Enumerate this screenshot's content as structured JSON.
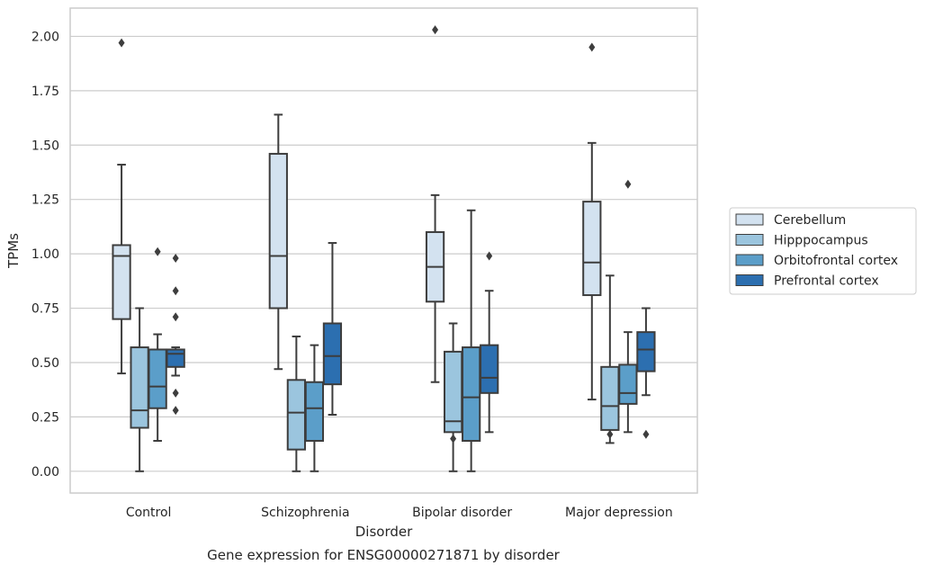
{
  "chart_data": {
    "type": "box",
    "title": "",
    "caption": "Gene expression for ENSG00000271871 by disorder",
    "xlabel": "Disorder",
    "ylabel": "TPMs",
    "ylim": [
      -0.1,
      2.13
    ],
    "y_ticks": [
      "0.00",
      "0.25",
      "0.50",
      "0.75",
      "1.00",
      "1.25",
      "1.50",
      "1.75",
      "2.00"
    ],
    "grid": "horizontal",
    "legend_position": "right",
    "categories": [
      "Control",
      "Schizophrenia",
      "Bipolar disorder",
      "Major depression"
    ],
    "series": [
      {
        "name": "Cerebellum",
        "color": "#d3e2f0",
        "boxes": [
          {
            "whisker_low": 0.45,
            "q1": 0.7,
            "median": 0.99,
            "q3": 1.04,
            "whisker_high": 1.41,
            "outliers": [
              1.97
            ]
          },
          {
            "whisker_low": 0.47,
            "q1": 0.75,
            "median": 0.99,
            "q3": 1.46,
            "whisker_high": 1.64,
            "outliers": []
          },
          {
            "whisker_low": 0.41,
            "q1": 0.78,
            "median": 0.94,
            "q3": 1.1,
            "whisker_high": 1.27,
            "outliers": [
              2.03
            ]
          },
          {
            "whisker_low": 0.33,
            "q1": 0.81,
            "median": 0.96,
            "q3": 1.24,
            "whisker_high": 1.51,
            "outliers": [
              1.95
            ]
          }
        ]
      },
      {
        "name": "Hipppocampus",
        "color": "#9bc5de",
        "boxes": [
          {
            "whisker_low": 0.0,
            "q1": 0.2,
            "median": 0.28,
            "q3": 0.57,
            "whisker_high": 0.75,
            "outliers": []
          },
          {
            "whisker_low": 0.0,
            "q1": 0.1,
            "median": 0.27,
            "q3": 0.42,
            "whisker_high": 0.62,
            "outliers": []
          },
          {
            "whisker_low": 0.0,
            "q1": 0.18,
            "median": 0.23,
            "q3": 0.55,
            "whisker_high": 0.68,
            "outliers": [
              0.15
            ]
          },
          {
            "whisker_low": 0.13,
            "q1": 0.19,
            "median": 0.3,
            "q3": 0.48,
            "whisker_high": 0.9,
            "outliers": [
              0.17
            ]
          }
        ]
      },
      {
        "name": "Orbitofrontal cortex",
        "color": "#5b9ec9",
        "boxes": [
          {
            "whisker_low": 0.14,
            "q1": 0.29,
            "median": 0.39,
            "q3": 0.56,
            "whisker_high": 0.63,
            "outliers": [
              1.01
            ]
          },
          {
            "whisker_low": 0.0,
            "q1": 0.14,
            "median": 0.29,
            "q3": 0.41,
            "whisker_high": 0.58,
            "outliers": []
          },
          {
            "whisker_low": 0.0,
            "q1": 0.14,
            "median": 0.34,
            "q3": 0.57,
            "whisker_high": 1.2,
            "outliers": []
          },
          {
            "whisker_low": 0.18,
            "q1": 0.31,
            "median": 0.36,
            "q3": 0.49,
            "whisker_high": 0.64,
            "outliers": [
              1.32
            ]
          }
        ]
      },
      {
        "name": "Prefrontal cortex",
        "color": "#2c6fb0",
        "boxes": [
          {
            "whisker_low": 0.44,
            "q1": 0.48,
            "median": 0.54,
            "q3": 0.56,
            "whisker_high": 0.57,
            "outliers": [
              0.98,
              0.83,
              0.71,
              0.36,
              0.28
            ]
          },
          {
            "whisker_low": 0.26,
            "q1": 0.4,
            "median": 0.53,
            "q3": 0.68,
            "whisker_high": 1.05,
            "outliers": []
          },
          {
            "whisker_low": 0.18,
            "q1": 0.36,
            "median": 0.43,
            "q3": 0.58,
            "whisker_high": 0.83,
            "outliers": [
              0.99
            ]
          },
          {
            "whisker_low": 0.35,
            "q1": 0.46,
            "median": 0.56,
            "q3": 0.64,
            "whisker_high": 0.75,
            "outliers": [
              0.17
            ]
          }
        ]
      }
    ]
  }
}
